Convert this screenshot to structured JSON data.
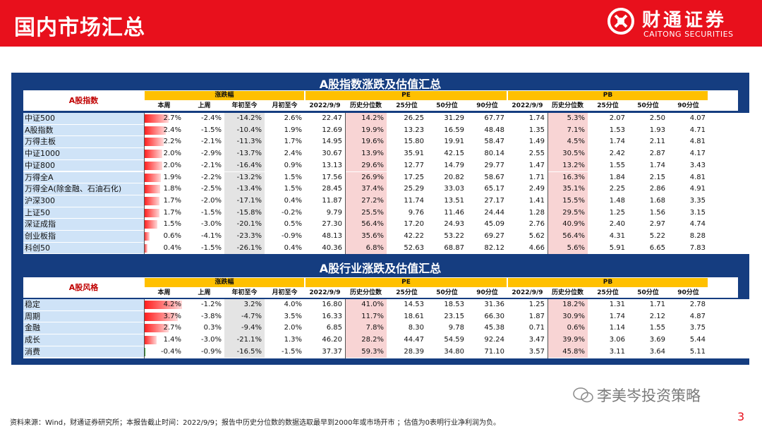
{
  "header": {
    "title": "国内市场汇总",
    "brand_cn": "财通证券",
    "brand_en": "CAITONG SECURITIES"
  },
  "colors": {
    "red": "#e8101c",
    "navy": "#153d80",
    "gold": "#ffc000",
    "bar_red": "#ff1a1a",
    "bar_green": "#2e9e2e"
  },
  "group_headers": {
    "change": "涨跌幅",
    "pe": "PE",
    "pb": "PB"
  },
  "columns": [
    "本周",
    "上周",
    "年初至今",
    "月初至今",
    "2022/9/9",
    "历史分位数",
    "25分位",
    "50分位",
    "90分位",
    "2022/9/9",
    "历史分位数",
    "25分位",
    "50分位",
    "90分位"
  ],
  "sections": [
    {
      "title": "A股指数涨跌及估值汇总",
      "label": "A股指数",
      "rows": [
        {
          "name": "中证500",
          "bar_pct": 2.7,
          "v": [
            "2.7%",
            "-2.4%",
            "-14.2%",
            "2.6%",
            "22.47",
            "14.2%",
            "26.25",
            "31.29",
            "67.77",
            "1.74",
            "5.3%",
            "2.07",
            "2.50",
            "4.07"
          ]
        },
        {
          "name": "A股指数",
          "bar_pct": 2.4,
          "v": [
            "2.4%",
            "-1.5%",
            "-10.4%",
            "1.9%",
            "12.69",
            "19.9%",
            "13.23",
            "16.59",
            "48.48",
            "1.35",
            "7.1%",
            "1.53",
            "1.93",
            "4.71"
          ]
        },
        {
          "name": "万得主板",
          "bar_pct": 2.2,
          "v": [
            "2.2%",
            "-2.1%",
            "-11.3%",
            "1.7%",
            "14.95",
            "19.6%",
            "15.80",
            "19.91",
            "58.47",
            "1.49",
            "4.5%",
            "1.74",
            "2.11",
            "4.81"
          ]
        },
        {
          "name": "中证1000",
          "bar_pct": 2.0,
          "v": [
            "2.0%",
            "-2.9%",
            "-13.7%",
            "2.4%",
            "30.67",
            "13.9%",
            "35.91",
            "42.15",
            "80.14",
            "2.55",
            "30.5%",
            "2.42",
            "2.87",
            "4.17"
          ]
        },
        {
          "name": "中证800",
          "bar_pct": 2.0,
          "v": [
            "2.0%",
            "-2.1%",
            "-16.4%",
            "0.9%",
            "13.13",
            "29.6%",
            "12.77",
            "14.79",
            "29.77",
            "1.47",
            "13.2%",
            "1.55",
            "1.74",
            "3.43"
          ]
        },
        {
          "name": "万得全A",
          "bar_pct": 1.9,
          "v": [
            "1.9%",
            "-2.2%",
            "-13.2%",
            "1.5%",
            "17.56",
            "26.9%",
            "17.25",
            "20.82",
            "58.67",
            "1.71",
            "16.3%",
            "1.84",
            "2.15",
            "4.81"
          ]
        },
        {
          "name": "万得全A(除金融、石油石化)",
          "bar_pct": 1.8,
          "v": [
            "1.8%",
            "-2.5%",
            "-13.4%",
            "1.5%",
            "28.45",
            "37.4%",
            "25.29",
            "33.03",
            "65.17",
            "2.49",
            "35.1%",
            "2.25",
            "2.86",
            "4.91"
          ]
        },
        {
          "name": "沪深300",
          "bar_pct": 1.7,
          "v": [
            "1.7%",
            "-2.0%",
            "-17.1%",
            "0.4%",
            "11.87",
            "27.2%",
            "11.74",
            "13.51",
            "27.17",
            "1.41",
            "15.5%",
            "1.48",
            "1.68",
            "3.35"
          ]
        },
        {
          "name": "上证50",
          "bar_pct": 1.7,
          "v": [
            "1.7%",
            "-1.5%",
            "-15.8%",
            "-0.2%",
            "9.79",
            "25.5%",
            "9.76",
            "11.46",
            "24.44",
            "1.28",
            "29.5%",
            "1.25",
            "1.56",
            "3.15"
          ]
        },
        {
          "name": "深证成指",
          "bar_pct": 1.5,
          "v": [
            "1.5%",
            "-3.0%",
            "-20.1%",
            "0.5%",
            "27.30",
            "56.4%",
            "17.20",
            "24.93",
            "45.09",
            "2.76",
            "40.9%",
            "2.40",
            "2.97",
            "4.74"
          ]
        },
        {
          "name": "创业板指",
          "bar_pct": 0.6,
          "v": [
            "0.6%",
            "-4.1%",
            "-23.3%",
            "-0.9%",
            "48.13",
            "35.6%",
            "42.22",
            "53.22",
            "69.27",
            "5.62",
            "56.4%",
            "4.31",
            "5.22",
            "8.28"
          ]
        },
        {
          "name": "科创50",
          "bar_pct": 0.4,
          "v": [
            "0.4%",
            "-1.5%",
            "-26.1%",
            "0.4%",
            "40.36",
            "6.8%",
            "52.63",
            "68.87",
            "82.12",
            "4.66",
            "5.6%",
            "5.91",
            "6.65",
            "7.83"
          ]
        }
      ]
    },
    {
      "title": "A股行业涨跌及估值汇总",
      "label": "A股风格",
      "rows": [
        {
          "name": "稳定",
          "bar_pct": 4.2,
          "v": [
            "4.2%",
            "-1.2%",
            "3.2%",
            "4.0%",
            "16.80",
            "41.0%",
            "14.53",
            "18.53",
            "31.36",
            "1.25",
            "18.2%",
            "1.31",
            "1.71",
            "2.78"
          ]
        },
        {
          "name": "周期",
          "bar_pct": 3.7,
          "v": [
            "3.7%",
            "-3.8%",
            "-4.7%",
            "3.5%",
            "16.33",
            "11.7%",
            "18.61",
            "23.15",
            "66.30",
            "1.87",
            "30.9%",
            "1.74",
            "2.12",
            "4.87"
          ]
        },
        {
          "name": "金融",
          "bar_pct": 2.7,
          "v": [
            "2.7%",
            "0.3%",
            "-9.4%",
            "2.0%",
            "6.85",
            "7.8%",
            "8.30",
            "9.78",
            "45.38",
            "0.71",
            "0.6%",
            "1.14",
            "1.55",
            "3.75"
          ]
        },
        {
          "name": "成长",
          "bar_pct": 1.4,
          "v": [
            "1.4%",
            "-3.0%",
            "-21.1%",
            "1.3%",
            "46.20",
            "28.2%",
            "44.47",
            "54.59",
            "92.24",
            "3.47",
            "39.9%",
            "3.06",
            "3.69",
            "5.44"
          ]
        },
        {
          "name": "消费",
          "bar_pct": -0.4,
          "v": [
            "-0.4%",
            "-0.9%",
            "-16.5%",
            "-1.5%",
            "37.37",
            "59.3%",
            "28.39",
            "34.80",
            "71.10",
            "3.57",
            "45.8%",
            "3.11",
            "3.64",
            "5.11"
          ]
        }
      ]
    }
  ],
  "watermark": "李美岑投资策略",
  "footer": "资料来源：Wind，财通证券研究所；本报告截止时间：2022/9/9；报告中历史分位数的数据选取最早到2000年或市场开市 ；估值为0表明行业净利润为负。",
  "page_number": "3"
}
